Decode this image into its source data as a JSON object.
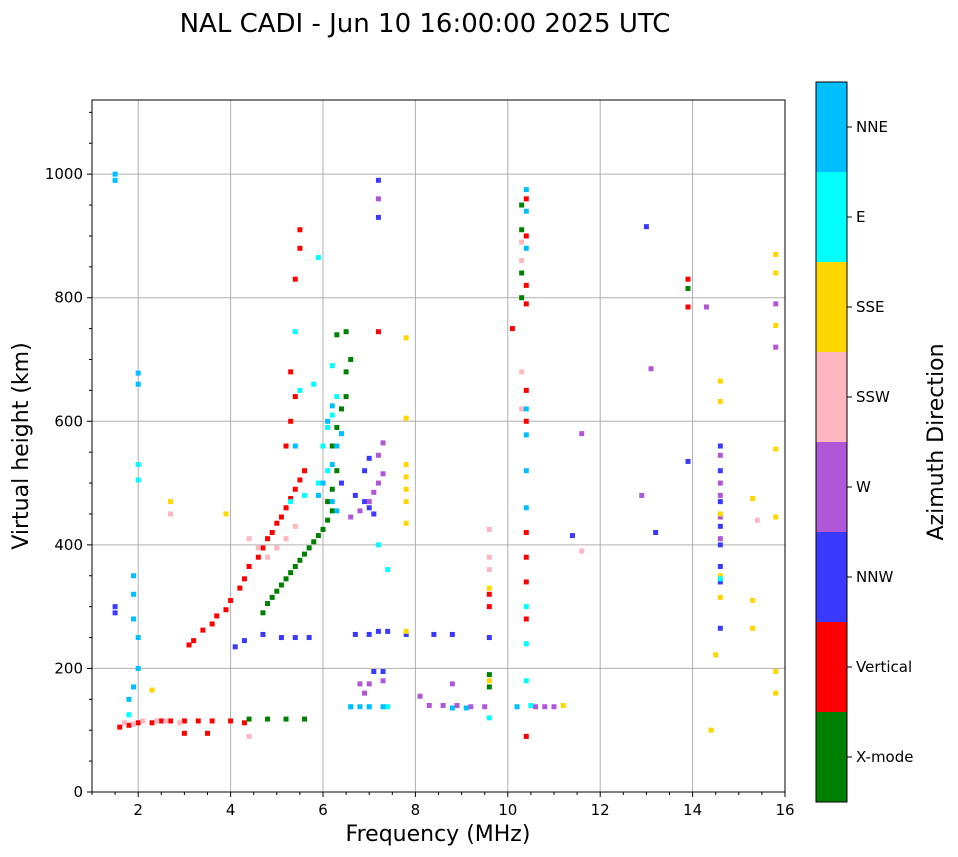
{
  "chart_data": {
    "type": "scatter",
    "title": "NAL CADI - Jun 10 16:00:00 2025 UTC",
    "xlabel": "Frequency (MHz)",
    "ylabel": "Virtual height (km)",
    "xlim": [
      1,
      16
    ],
    "ylim": [
      0,
      1120
    ],
    "xticks": [
      2,
      4,
      6,
      8,
      10,
      12,
      14,
      16
    ],
    "yticks": [
      0,
      200,
      400,
      600,
      800,
      1000
    ],
    "grid": true,
    "colorbar": {
      "title": "Azimuth Direction",
      "categories": [
        {
          "name": "X-mode",
          "color": "#008000"
        },
        {
          "name": "Vertical",
          "color": "#ff0000"
        },
        {
          "name": "NNW",
          "color": "#3a3aff"
        },
        {
          "name": "W",
          "color": "#b057d8"
        },
        {
          "name": "SSW",
          "color": "#ffb6c1"
        },
        {
          "name": "SSE",
          "color": "#ffd700"
        },
        {
          "name": "E",
          "color": "#00ffff"
        },
        {
          "name": "NNE",
          "color": "#00bfff"
        }
      ]
    },
    "series": [
      {
        "name": "Vertical",
        "points": [
          [
            1.6,
            105
          ],
          [
            1.8,
            108
          ],
          [
            2.0,
            112
          ],
          [
            2.3,
            112
          ],
          [
            2.5,
            115
          ],
          [
            2.7,
            115
          ],
          [
            3.0,
            115
          ],
          [
            3.3,
            115
          ],
          [
            3.6,
            115
          ],
          [
            4.0,
            115
          ],
          [
            4.3,
            112
          ],
          [
            3.0,
            95
          ],
          [
            3.5,
            95
          ],
          [
            3.1,
            238
          ],
          [
            3.2,
            245
          ],
          [
            3.4,
            262
          ],
          [
            3.6,
            272
          ],
          [
            3.7,
            285
          ],
          [
            3.9,
            295
          ],
          [
            4.0,
            310
          ],
          [
            4.2,
            330
          ],
          [
            4.3,
            345
          ],
          [
            4.4,
            365
          ],
          [
            4.6,
            380
          ],
          [
            4.7,
            395
          ],
          [
            4.8,
            410
          ],
          [
            4.9,
            420
          ],
          [
            5.0,
            435
          ],
          [
            5.1,
            445
          ],
          [
            5.2,
            460
          ],
          [
            5.3,
            475
          ],
          [
            5.4,
            490
          ],
          [
            5.5,
            505
          ],
          [
            5.6,
            520
          ],
          [
            5.2,
            560
          ],
          [
            5.3,
            600
          ],
          [
            5.4,
            640
          ],
          [
            5.3,
            680
          ],
          [
            5.4,
            830
          ],
          [
            5.5,
            880
          ],
          [
            5.5,
            910
          ],
          [
            7.2,
            745
          ],
          [
            10.4,
            960
          ],
          [
            10.4,
            900
          ],
          [
            10.4,
            820
          ],
          [
            10.4,
            790
          ],
          [
            10.4,
            650
          ],
          [
            10.4,
            600
          ],
          [
            10.4,
            420
          ],
          [
            10.4,
            380
          ],
          [
            10.4,
            340
          ],
          [
            10.4,
            280
          ],
          [
            10.4,
            90
          ],
          [
            9.6,
            320
          ],
          [
            9.6,
            300
          ],
          [
            10.1,
            750
          ],
          [
            13.9,
            830
          ],
          [
            13.9,
            785
          ]
        ]
      },
      {
        "name": "X-mode",
        "points": [
          [
            4.4,
            118
          ],
          [
            4.8,
            118
          ],
          [
            5.2,
            118
          ],
          [
            5.6,
            118
          ],
          [
            4.7,
            290
          ],
          [
            4.8,
            305
          ],
          [
            4.9,
            315
          ],
          [
            5.0,
            325
          ],
          [
            5.1,
            335
          ],
          [
            5.2,
            345
          ],
          [
            5.3,
            355
          ],
          [
            5.4,
            365
          ],
          [
            5.5,
            375
          ],
          [
            5.6,
            385
          ],
          [
            5.7,
            395
          ],
          [
            5.8,
            405
          ],
          [
            5.9,
            415
          ],
          [
            6.0,
            425
          ],
          [
            6.1,
            440
          ],
          [
            6.2,
            455
          ],
          [
            6.1,
            470
          ],
          [
            6.2,
            490
          ],
          [
            6.3,
            520
          ],
          [
            6.2,
            560
          ],
          [
            6.3,
            590
          ],
          [
            6.4,
            620
          ],
          [
            6.5,
            640
          ],
          [
            6.5,
            680
          ],
          [
            6.6,
            700
          ],
          [
            6.3,
            740
          ],
          [
            6.5,
            745
          ],
          [
            10.3,
            950
          ],
          [
            10.3,
            910
          ],
          [
            10.3,
            840
          ],
          [
            10.3,
            800
          ],
          [
            9.6,
            190
          ],
          [
            9.6,
            170
          ],
          [
            13.9,
            815
          ]
        ]
      },
      {
        "name": "NNW",
        "points": [
          [
            7.1,
            195
          ],
          [
            7.3,
            195
          ],
          [
            6.7,
            255
          ],
          [
            7.0,
            255
          ],
          [
            7.2,
            260
          ],
          [
            7.4,
            260
          ],
          [
            7.8,
            255
          ],
          [
            8.4,
            255
          ],
          [
            8.8,
            255
          ],
          [
            9.6,
            250
          ],
          [
            4.1,
            235
          ],
          [
            4.3,
            245
          ],
          [
            4.7,
            255
          ],
          [
            5.1,
            250
          ],
          [
            5.4,
            250
          ],
          [
            5.7,
            250
          ],
          [
            6.7,
            480
          ],
          [
            6.9,
            470
          ],
          [
            7.0,
            460
          ],
          [
            7.1,
            450
          ],
          [
            6.9,
            520
          ],
          [
            7.0,
            540
          ],
          [
            6.4,
            500
          ],
          [
            7.2,
            990
          ],
          [
            7.2,
            930
          ],
          [
            13.2,
            420
          ],
          [
            13.9,
            535
          ],
          [
            14.6,
            560
          ],
          [
            14.6,
            520
          ],
          [
            14.6,
            470
          ],
          [
            14.6,
            430
          ],
          [
            14.6,
            400
          ],
          [
            14.6,
            365
          ],
          [
            14.6,
            340
          ],
          [
            14.6,
            265
          ],
          [
            11.4,
            415
          ],
          [
            13.0,
            915
          ],
          [
            1.5,
            300
          ],
          [
            1.5,
            290
          ]
        ]
      },
      {
        "name": "W",
        "points": [
          [
            6.8,
            175
          ],
          [
            7.0,
            175
          ],
          [
            8.3,
            140
          ],
          [
            8.6,
            140
          ],
          [
            8.9,
            140
          ],
          [
            9.2,
            138
          ],
          [
            9.5,
            138
          ],
          [
            10.6,
            138
          ],
          [
            10.8,
            138
          ],
          [
            11.0,
            138
          ],
          [
            6.6,
            445
          ],
          [
            6.8,
            455
          ],
          [
            7.0,
            470
          ],
          [
            7.1,
            485
          ],
          [
            7.2,
            500
          ],
          [
            7.3,
            515
          ],
          [
            7.2,
            545
          ],
          [
            7.3,
            565
          ],
          [
            7.2,
            960
          ],
          [
            13.1,
            685
          ],
          [
            12.9,
            480
          ],
          [
            14.3,
            785
          ],
          [
            14.6,
            545
          ],
          [
            14.6,
            500
          ],
          [
            14.6,
            480
          ],
          [
            14.6,
            445
          ],
          [
            14.6,
            410
          ],
          [
            15.8,
            790
          ],
          [
            15.8,
            720
          ],
          [
            11.6,
            580
          ],
          [
            8.1,
            155
          ],
          [
            8.8,
            175
          ],
          [
            7.3,
            180
          ],
          [
            6.9,
            160
          ]
        ]
      },
      {
        "name": "SSW",
        "points": [
          [
            1.7,
            112
          ],
          [
            1.9,
            110
          ],
          [
            2.1,
            115
          ],
          [
            2.4,
            115
          ],
          [
            2.6,
            115
          ],
          [
            2.9,
            112
          ],
          [
            4.4,
            90
          ],
          [
            15.4,
            440
          ],
          [
            9.6,
            380
          ],
          [
            9.6,
            360
          ],
          [
            9.6,
            425
          ],
          [
            10.3,
            890
          ],
          [
            10.3,
            860
          ],
          [
            10.3,
            680
          ],
          [
            10.3,
            620
          ],
          [
            11.6,
            390
          ],
          [
            2.7,
            450
          ],
          [
            4.4,
            410
          ],
          [
            4.6,
            395
          ],
          [
            4.8,
            380
          ],
          [
            5.0,
            395
          ],
          [
            5.2,
            410
          ],
          [
            5.4,
            430
          ]
        ]
      },
      {
        "name": "SSE",
        "points": [
          [
            7.8,
            470
          ],
          [
            7.8,
            490
          ],
          [
            7.8,
            510
          ],
          [
            7.8,
            530
          ],
          [
            7.8,
            735
          ],
          [
            7.8,
            605
          ],
          [
            7.8,
            435
          ],
          [
            7.8,
            260
          ],
          [
            9.6,
            330
          ],
          [
            9.6,
            180
          ],
          [
            11.2,
            140
          ],
          [
            14.6,
            665
          ],
          [
            14.6,
            632
          ],
          [
            14.6,
            450
          ],
          [
            14.6,
            350
          ],
          [
            14.6,
            315
          ],
          [
            14.5,
            222
          ],
          [
            14.4,
            100
          ],
          [
            15.3,
            475
          ],
          [
            15.3,
            310
          ],
          [
            15.3,
            265
          ],
          [
            15.8,
            870
          ],
          [
            15.8,
            840
          ],
          [
            15.8,
            755
          ],
          [
            15.8,
            555
          ],
          [
            15.8,
            445
          ],
          [
            15.8,
            195
          ],
          [
            15.8,
            160
          ],
          [
            2.7,
            470
          ],
          [
            2.3,
            165
          ],
          [
            3.9,
            450
          ]
        ]
      },
      {
        "name": "E",
        "points": [
          [
            6.6,
            138
          ],
          [
            7.0,
            138
          ],
          [
            7.4,
            138
          ],
          [
            7.2,
            400
          ],
          [
            7.4,
            360
          ],
          [
            9.6,
            120
          ],
          [
            10.5,
            140
          ],
          [
            10.4,
            300
          ],
          [
            10.4,
            240
          ],
          [
            10.4,
            180
          ],
          [
            14.6,
            345
          ],
          [
            5.3,
            470
          ],
          [
            5.6,
            480
          ],
          [
            5.9,
            500
          ],
          [
            6.1,
            520
          ],
          [
            6.0,
            560
          ],
          [
            6.1,
            590
          ],
          [
            6.2,
            610
          ],
          [
            6.3,
            640
          ],
          [
            5.8,
            660
          ],
          [
            6.2,
            690
          ],
          [
            5.5,
            650
          ],
          [
            2.0,
            530
          ],
          [
            2.0,
            505
          ],
          [
            1.8,
            125
          ],
          [
            5.4,
            745
          ],
          [
            5.9,
            865
          ]
        ]
      },
      {
        "name": "NNE",
        "points": [
          [
            1.5,
            1000
          ],
          [
            1.5,
            990
          ],
          [
            2.0,
            678
          ],
          [
            2.0,
            660
          ],
          [
            1.9,
            350
          ],
          [
            1.9,
            320
          ],
          [
            1.9,
            280
          ],
          [
            2.0,
            250
          ],
          [
            2.0,
            200
          ],
          [
            1.9,
            170
          ],
          [
            1.8,
            150
          ],
          [
            6.6,
            138
          ],
          [
            6.8,
            138
          ],
          [
            7.0,
            138
          ],
          [
            7.3,
            138
          ],
          [
            8.8,
            136
          ],
          [
            9.1,
            136
          ],
          [
            10.2,
            138
          ],
          [
            10.4,
            975
          ],
          [
            10.4,
            940
          ],
          [
            10.4,
            880
          ],
          [
            10.4,
            620
          ],
          [
            10.4,
            578
          ],
          [
            10.4,
            520
          ],
          [
            10.4,
            460
          ],
          [
            5.9,
            480
          ],
          [
            6.0,
            500
          ],
          [
            6.2,
            530
          ],
          [
            6.3,
            560
          ],
          [
            6.4,
            580
          ],
          [
            6.1,
            600
          ],
          [
            6.2,
            625
          ],
          [
            5.4,
            560
          ],
          [
            6.3,
            455
          ],
          [
            6.2,
            470
          ]
        ]
      }
    ]
  }
}
